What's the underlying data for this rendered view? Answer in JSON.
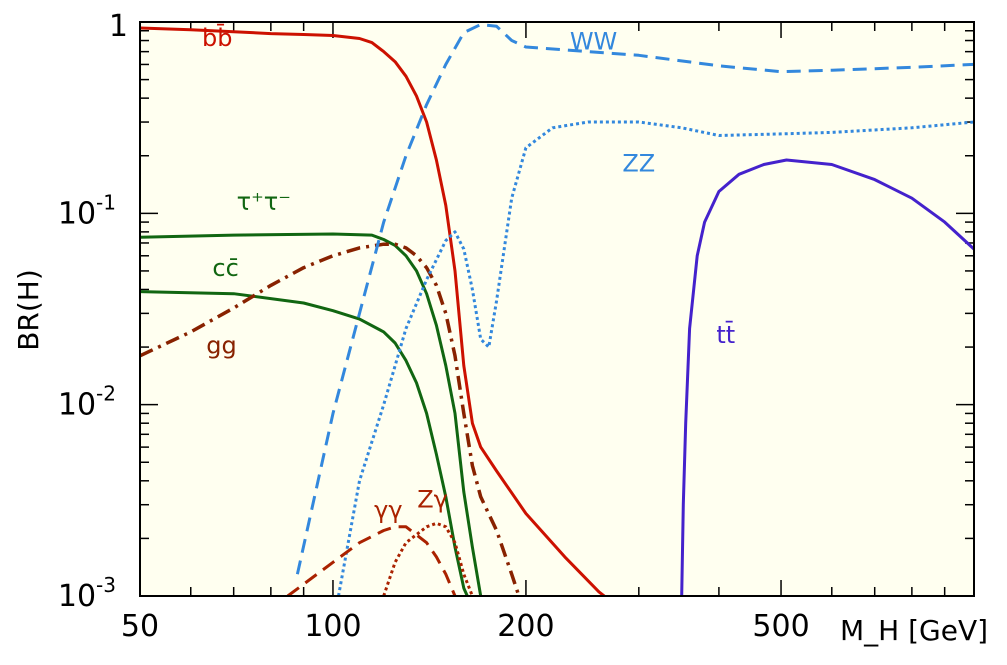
{
  "chart_data": {
    "type": "line",
    "xlabel": "M_H [GeV]",
    "ylabel": "BR(H)",
    "xscale": "log",
    "yscale": "log",
    "xlim": [
      50,
      1000
    ],
    "ylim": [
      0.001,
      1
    ],
    "x_tick_labels": [
      {
        "value": 50,
        "label": "50"
      },
      {
        "value": 100,
        "label": "100"
      },
      {
        "value": 200,
        "label": "200"
      },
      {
        "value": 500,
        "label": "500"
      }
    ],
    "y_tick_labels": [
      {
        "value": 1,
        "base": "1",
        "exp": ""
      },
      {
        "value": 0.1,
        "base": "10",
        "exp": "-1"
      },
      {
        "value": 0.01,
        "base": "10",
        "exp": "-2"
      },
      {
        "value": 0.001,
        "base": "10",
        "exp": "-3"
      }
    ],
    "background_color": "#fffff0",
    "series": [
      {
        "key": "bb",
        "name": "bb̄",
        "color": "#cc1100",
        "dash": "solid",
        "label_at": [
          66,
          0.75
        ],
        "points": [
          [
            50,
            0.93
          ],
          [
            60,
            0.91
          ],
          [
            70,
            0.89
          ],
          [
            80,
            0.87
          ],
          [
            90,
            0.86
          ],
          [
            100,
            0.85
          ],
          [
            110,
            0.82
          ],
          [
            115,
            0.78
          ],
          [
            120,
            0.7
          ],
          [
            125,
            0.62
          ],
          [
            130,
            0.52
          ],
          [
            135,
            0.41
          ],
          [
            140,
            0.3
          ],
          [
            145,
            0.19
          ],
          [
            150,
            0.11
          ],
          [
            155,
            0.05
          ],
          [
            160,
            0.016
          ],
          [
            165,
            0.008
          ],
          [
            170,
            0.006
          ],
          [
            180,
            0.0045
          ],
          [
            200,
            0.0027
          ],
          [
            230,
            0.0016
          ],
          [
            260,
            0.00105
          ],
          [
            265,
            0.001
          ]
        ]
      },
      {
        "key": "tautau",
        "name": "τ⁺τ⁻",
        "color": "#116611",
        "dash": "solid",
        "label_at": [
          78,
          0.105
        ],
        "points": [
          [
            50,
            0.075
          ],
          [
            70,
            0.077
          ],
          [
            100,
            0.078
          ],
          [
            115,
            0.077
          ],
          [
            120,
            0.073
          ],
          [
            125,
            0.068
          ],
          [
            130,
            0.06
          ],
          [
            135,
            0.05
          ],
          [
            140,
            0.038
          ],
          [
            145,
            0.026
          ],
          [
            150,
            0.016
          ],
          [
            155,
            0.009
          ],
          [
            160,
            0.0035
          ],
          [
            165,
            0.0018
          ],
          [
            170,
            0.001
          ]
        ]
      },
      {
        "key": "cc",
        "name": "cc̄",
        "color": "#116611",
        "dash": "solid",
        "label_at": [
          68,
          0.047
        ],
        "points": [
          [
            50,
            0.039
          ],
          [
            70,
            0.038
          ],
          [
            90,
            0.034
          ],
          [
            100,
            0.031
          ],
          [
            110,
            0.028
          ],
          [
            120,
            0.024
          ],
          [
            125,
            0.021
          ],
          [
            130,
            0.017
          ],
          [
            135,
            0.013
          ],
          [
            140,
            0.009
          ],
          [
            145,
            0.0055
          ],
          [
            150,
            0.0033
          ],
          [
            155,
            0.0018
          ],
          [
            160,
            0.0011
          ],
          [
            162,
            0.001
          ]
        ]
      },
      {
        "key": "gg",
        "name": "gg",
        "color": "#882200",
        "dash": "dashdot",
        "label_at": [
          67,
          0.0185
        ],
        "points": [
          [
            50,
            0.018
          ],
          [
            60,
            0.024
          ],
          [
            70,
            0.032
          ],
          [
            80,
            0.042
          ],
          [
            90,
            0.052
          ],
          [
            100,
            0.06
          ],
          [
            110,
            0.066
          ],
          [
            120,
            0.069
          ],
          [
            125,
            0.069
          ],
          [
            130,
            0.066
          ],
          [
            135,
            0.06
          ],
          [
            140,
            0.052
          ],
          [
            145,
            0.042
          ],
          [
            150,
            0.03
          ],
          [
            155,
            0.018
          ],
          [
            160,
            0.009
          ],
          [
            165,
            0.0048
          ],
          [
            170,
            0.0033
          ],
          [
            180,
            0.0022
          ],
          [
            190,
            0.0013
          ],
          [
            195,
            0.001
          ]
        ]
      },
      {
        "key": "WW",
        "name": "WW",
        "color": "#3388dd",
        "dash": "dashed",
        "label_at": [
          255,
          0.72
        ],
        "points": [
          [
            88,
            0.0013
          ],
          [
            100,
            0.009
          ],
          [
            110,
            0.03
          ],
          [
            120,
            0.09
          ],
          [
            130,
            0.2
          ],
          [
            140,
            0.37
          ],
          [
            150,
            0.6
          ],
          [
            160,
            0.88
          ],
          [
            170,
            0.97
          ],
          [
            180,
            0.95
          ],
          [
            190,
            0.8
          ],
          [
            200,
            0.74
          ],
          [
            250,
            0.7
          ],
          [
            300,
            0.67
          ],
          [
            400,
            0.59
          ],
          [
            500,
            0.55
          ],
          [
            600,
            0.56
          ],
          [
            700,
            0.57
          ],
          [
            800,
            0.58
          ],
          [
            1000,
            0.6
          ]
        ]
      },
      {
        "key": "ZZ",
        "name": "ZZ",
        "color": "#3388dd",
        "dash": "dotted",
        "label_at": [
          300,
          0.165
        ],
        "points": [
          [
            102,
            0.001
          ],
          [
            110,
            0.004
          ],
          [
            120,
            0.01
          ],
          [
            130,
            0.025
          ],
          [
            140,
            0.045
          ],
          [
            150,
            0.072
          ],
          [
            155,
            0.08
          ],
          [
            160,
            0.065
          ],
          [
            165,
            0.04
          ],
          [
            170,
            0.022
          ],
          [
            175,
            0.02
          ],
          [
            180,
            0.035
          ],
          [
            190,
            0.12
          ],
          [
            200,
            0.22
          ],
          [
            220,
            0.28
          ],
          [
            250,
            0.3
          ],
          [
            300,
            0.3
          ],
          [
            350,
            0.28
          ],
          [
            400,
            0.255
          ],
          [
            500,
            0.26
          ],
          [
            600,
            0.265
          ],
          [
            800,
            0.28
          ],
          [
            1000,
            0.3
          ]
        ]
      },
      {
        "key": "gamgam",
        "name": "γγ",
        "color": "#aa2200",
        "dash": "dashed",
        "label_at": [
          122,
          0.00255
        ],
        "points": [
          [
            85,
            0.001
          ],
          [
            100,
            0.0015
          ],
          [
            110,
            0.0019
          ],
          [
            120,
            0.0022
          ],
          [
            125,
            0.0023
          ],
          [
            130,
            0.0023
          ],
          [
            140,
            0.0019
          ],
          [
            145,
            0.0016
          ],
          [
            150,
            0.0013
          ],
          [
            155,
            0.001
          ]
        ]
      },
      {
        "key": "Zgam",
        "name": "Zγ",
        "color": "#aa2200",
        "dash": "dotted",
        "label_at": [
          143,
          0.0029
        ],
        "points": [
          [
            120,
            0.001
          ],
          [
            125,
            0.0015
          ],
          [
            130,
            0.0019
          ],
          [
            140,
            0.0023
          ],
          [
            145,
            0.0024
          ],
          [
            150,
            0.0023
          ],
          [
            155,
            0.0019
          ],
          [
            160,
            0.0013
          ],
          [
            165,
            0.001
          ]
        ]
      },
      {
        "key": "tt",
        "name": "tt̄",
        "color": "#4422cc",
        "dash": "solid",
        "label_at": [
          410,
          0.021
        ],
        "points": [
          [
            350,
            0.001
          ],
          [
            352,
            0.003
          ],
          [
            355,
            0.008
          ],
          [
            360,
            0.025
          ],
          [
            370,
            0.06
          ],
          [
            380,
            0.09
          ],
          [
            400,
            0.13
          ],
          [
            430,
            0.16
          ],
          [
            470,
            0.18
          ],
          [
            510,
            0.19
          ],
          [
            600,
            0.18
          ],
          [
            700,
            0.15
          ],
          [
            800,
            0.12
          ],
          [
            900,
            0.09
          ],
          [
            1000,
            0.065
          ]
        ]
      }
    ]
  }
}
